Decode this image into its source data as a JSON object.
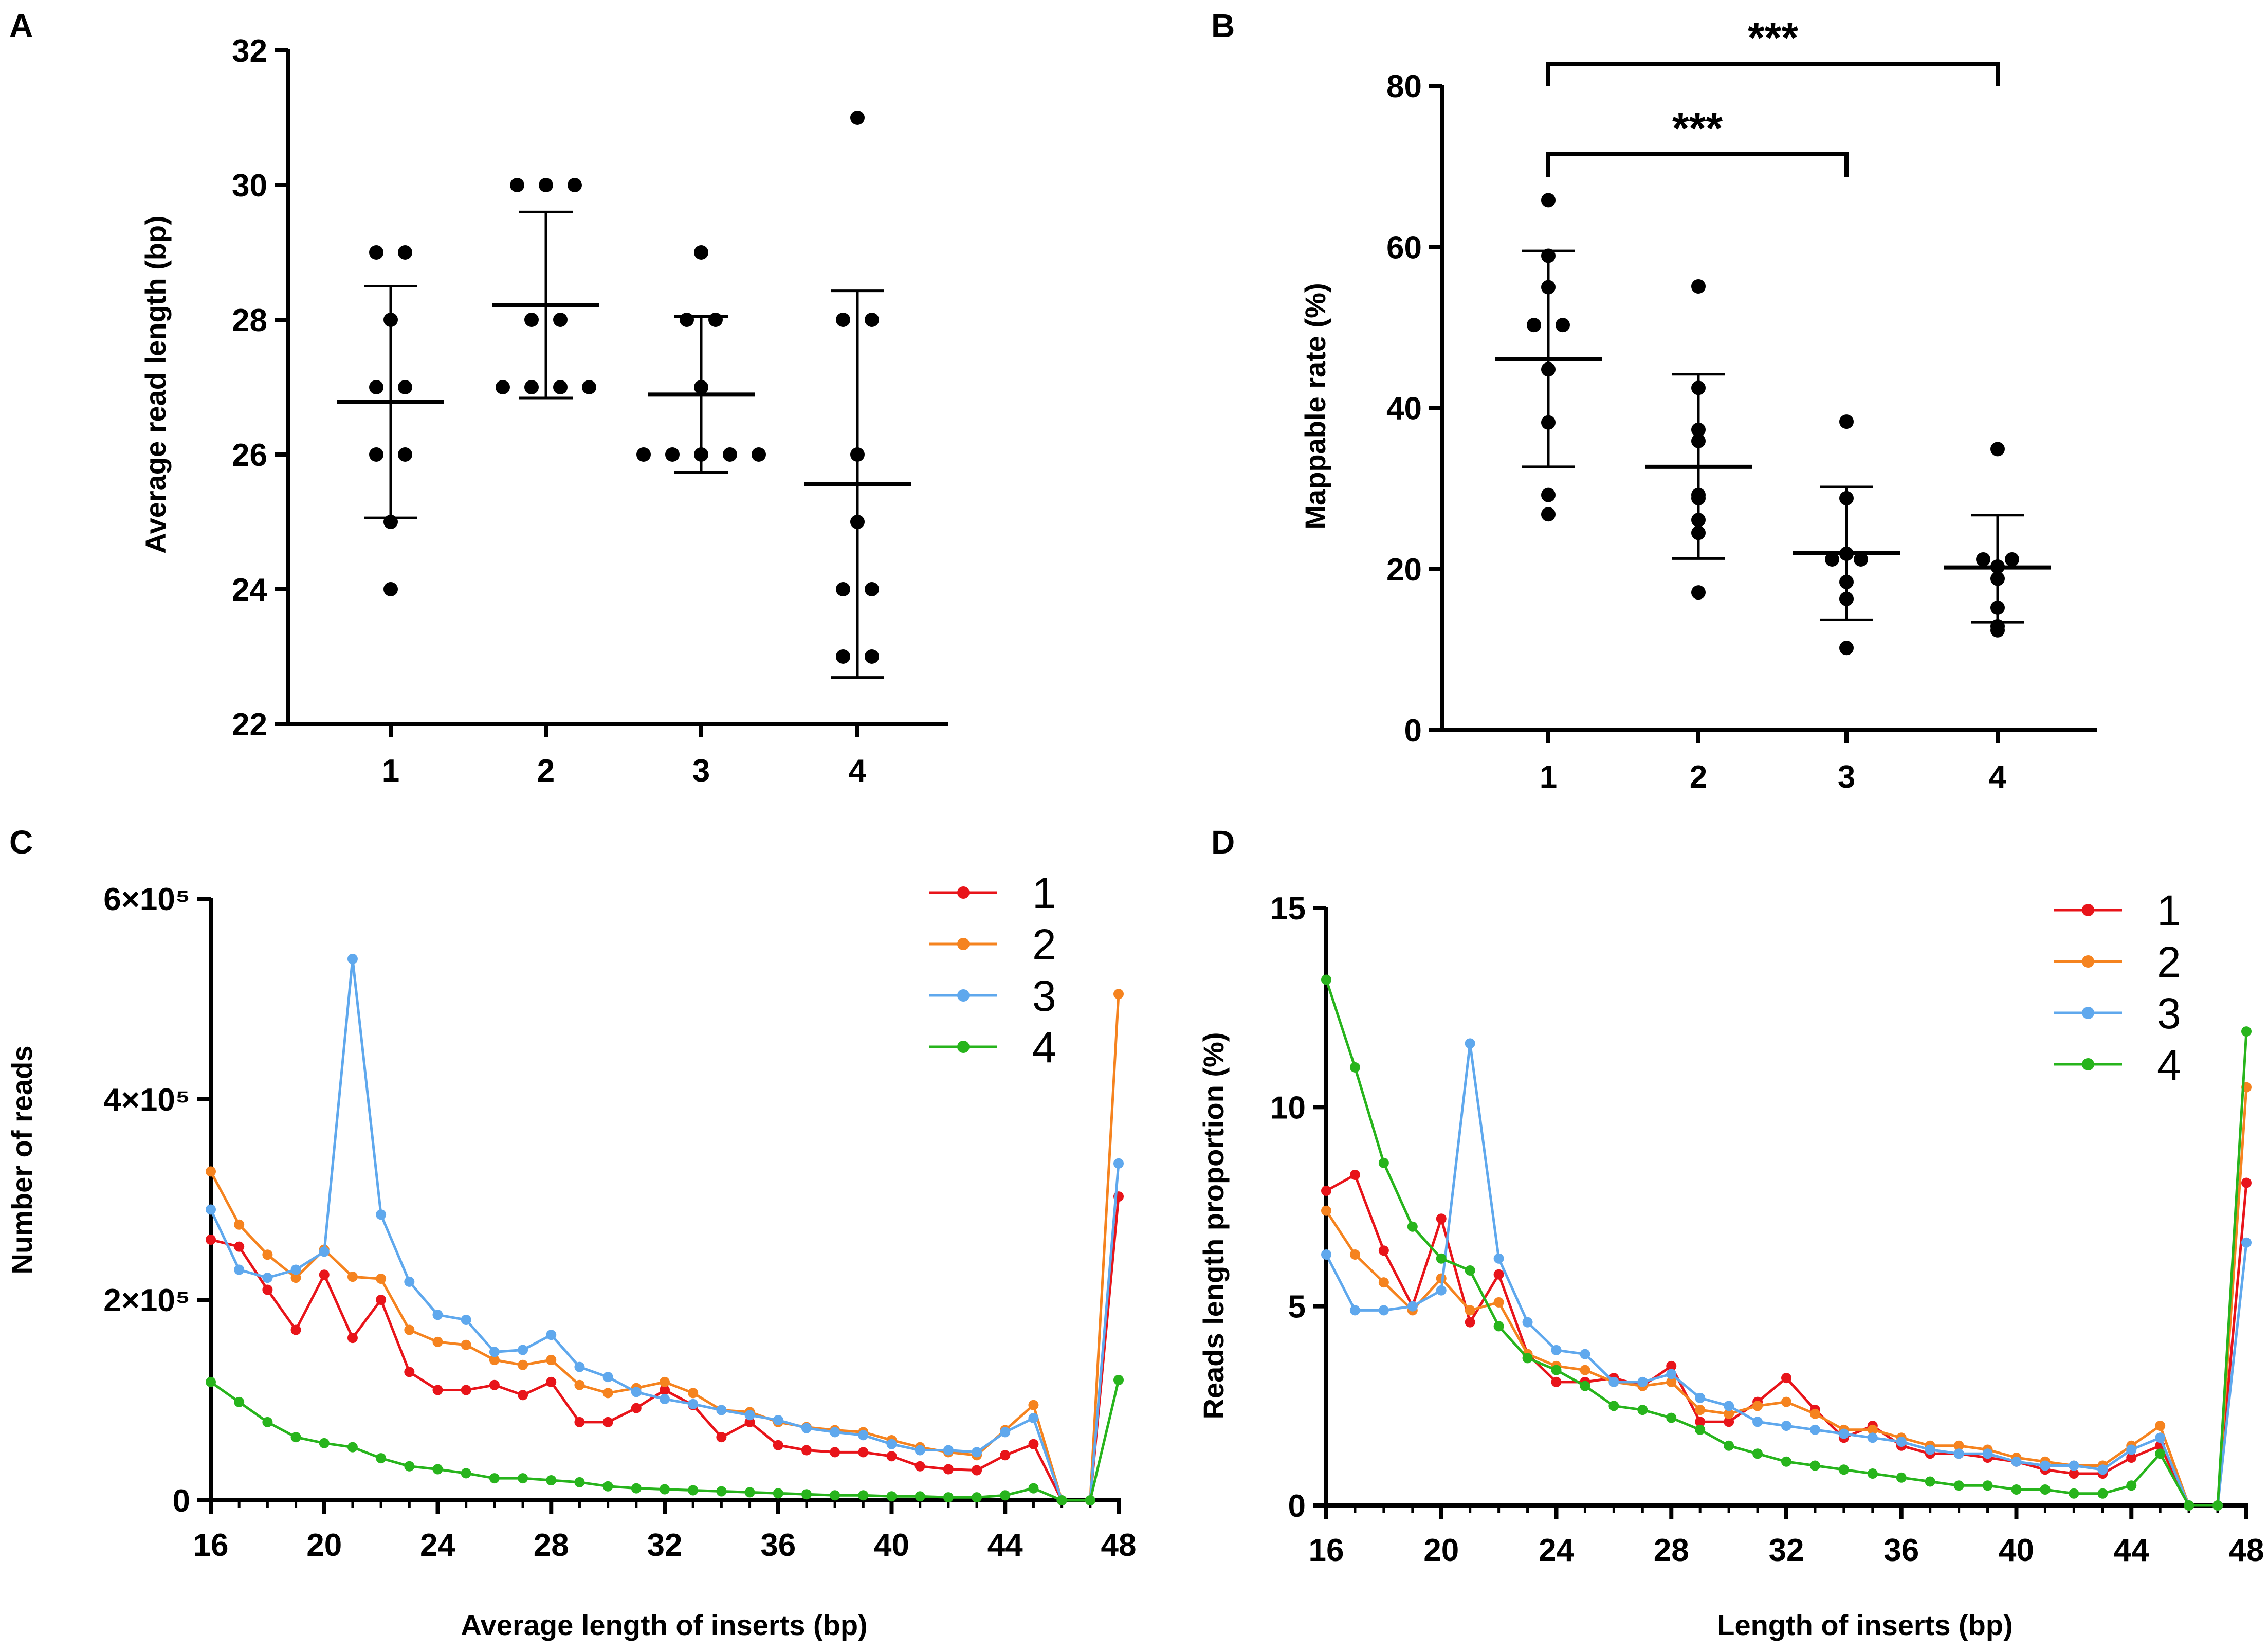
{
  "colors": {
    "s1": "#e8141a",
    "s2": "#f5831f",
    "s3": "#5fa8ed",
    "s4": "#27b41c",
    "axis": "#000000"
  },
  "chart_data": [
    {
      "panel": "A",
      "type": "scatter",
      "ylabel": "Average read length (bp)",
      "ylim": [
        22,
        32
      ],
      "yticks": [
        22,
        24,
        26,
        28,
        30,
        32
      ],
      "categories": [
        "1",
        "2",
        "3",
        "4"
      ],
      "groups": [
        {
          "name": "1",
          "points": [
            29,
            29,
            28,
            27,
            27,
            26,
            26,
            25,
            24
          ],
          "mean": 26.78,
          "sd_low": 25.06,
          "sd_high": 28.5
        },
        {
          "name": "2",
          "points": [
            30,
            30,
            30,
            28,
            28,
            27,
            27,
            27,
            27
          ],
          "mean": 28.22,
          "sd_low": 26.84,
          "sd_high": 29.6
        },
        {
          "name": "3",
          "points": [
            29,
            28,
            28,
            27,
            26,
            26,
            26,
            26,
            26
          ],
          "mean": 26.89,
          "sd_low": 25.73,
          "sd_high": 28.05
        },
        {
          "name": "4",
          "points": [
            31,
            28,
            28,
            26,
            25,
            24,
            24,
            23,
            23
          ],
          "mean": 25.56,
          "sd_low": 22.69,
          "sd_high": 28.43
        }
      ]
    },
    {
      "panel": "B",
      "type": "scatter",
      "ylabel": "Mappable rate (%)",
      "ylim": [
        0,
        80
      ],
      "yticks": [
        0,
        20,
        40,
        60,
        80
      ],
      "categories": [
        "1",
        "2",
        "3",
        "4"
      ],
      "groups": [
        {
          "name": "1",
          "points": [
            65.8,
            58.9,
            55,
            50.3,
            50.3,
            44.8,
            38.2,
            29.2,
            26.8
          ],
          "mean": 46.1,
          "sd_low": 32.7,
          "sd_high": 59.5
        },
        {
          "name": "2",
          "points": [
            55.1,
            42.5,
            37.3,
            35.9,
            29.2,
            28.8,
            26.1,
            24.5,
            17.1
          ],
          "mean": 32.7,
          "sd_low": 21.3,
          "sd_high": 44.2
        },
        {
          "name": "3",
          "points": [
            38.3,
            28.8,
            21.9,
            21.2,
            21.2,
            18.4,
            16.3,
            10.2
          ],
          "mean": 22.0,
          "sd_low": 13.7,
          "sd_high": 30.2
        },
        {
          "name": "4",
          "points": [
            34.9,
            21.2,
            21.2,
            20.3,
            18.8,
            15.2,
            12.9,
            12.4
          ],
          "mean": 20.2,
          "sd_low": 13.4,
          "sd_high": 26.7
        }
      ],
      "significance": [
        {
          "from": "1",
          "to": "3",
          "label": "***"
        },
        {
          "from": "1",
          "to": "4",
          "label": "***"
        }
      ]
    },
    {
      "panel": "C",
      "type": "line",
      "xlabel": "Average length of inserts (bp)",
      "ylabel": "Number of reads",
      "xlim": [
        16,
        48
      ],
      "ylim": [
        0,
        600000
      ],
      "xticks": [
        16,
        20,
        24,
        28,
        32,
        36,
        40,
        44,
        48
      ],
      "ytick_values": [
        0,
        200000,
        400000,
        600000
      ],
      "ytick_labels": [
        "0",
        "2×10⁵",
        "4×10⁵",
        "6×10⁵"
      ],
      "x": [
        16,
        17,
        18,
        19,
        20,
        21,
        22,
        23,
        24,
        25,
        26,
        27,
        28,
        29,
        30,
        31,
        32,
        33,
        34,
        35,
        36,
        37,
        38,
        39,
        40,
        41,
        42,
        43,
        44,
        45,
        46,
        47,
        48
      ],
      "series": [
        {
          "name": "1",
          "values": [
            260000,
            253000,
            210000,
            170000,
            225000,
            162000,
            200000,
            128000,
            110000,
            110000,
            115000,
            105000,
            118000,
            78000,
            78000,
            92000,
            110000,
            95000,
            63000,
            78000,
            55000,
            50000,
            48000,
            48000,
            44000,
            34000,
            31000,
            30000,
            45000,
            56000,
            0,
            0,
            303000
          ]
        },
        {
          "name": "2",
          "values": [
            328000,
            275000,
            245000,
            222000,
            250000,
            223000,
            221000,
            170000,
            158000,
            155000,
            140000,
            135000,
            140000,
            115000,
            107000,
            112000,
            118000,
            107000,
            90000,
            88000,
            78000,
            73000,
            70000,
            68000,
            60000,
            53000,
            48000,
            45000,
            70000,
            95000,
            0,
            0,
            505000
          ]
        },
        {
          "name": "3",
          "values": [
            290000,
            230000,
            222000,
            230000,
            248000,
            540000,
            285000,
            218000,
            185000,
            180000,
            148000,
            150000,
            165000,
            133000,
            123000,
            108000,
            101000,
            96000,
            90000,
            85000,
            80000,
            72000,
            68000,
            65000,
            56000,
            50000,
            50000,
            48000,
            68000,
            82000,
            0,
            0,
            336000
          ]
        },
        {
          "name": "4",
          "values": [
            118000,
            98000,
            78000,
            63000,
            57000,
            53000,
            42000,
            34000,
            31000,
            27000,
            22000,
            22000,
            20000,
            18000,
            14000,
            12000,
            11000,
            10000,
            9000,
            8000,
            7000,
            6000,
            5000,
            5000,
            4000,
            4000,
            3000,
            3000,
            5000,
            12000,
            0,
            0,
            120000
          ]
        }
      ]
    },
    {
      "panel": "D",
      "type": "line",
      "xlabel": "Length of inserts (bp)",
      "ylabel": "Reads length proportion (%)",
      "xlim": [
        16,
        48
      ],
      "ylim": [
        0,
        15
      ],
      "xticks": [
        16,
        20,
        24,
        28,
        32,
        36,
        40,
        44,
        48
      ],
      "ytick_values": [
        0,
        5,
        10,
        15
      ],
      "ytick_labels": [
        "0",
        "5",
        "10",
        "15"
      ],
      "x": [
        16,
        17,
        18,
        19,
        20,
        21,
        22,
        23,
        24,
        25,
        26,
        27,
        28,
        29,
        30,
        31,
        32,
        33,
        34,
        35,
        36,
        37,
        38,
        39,
        40,
        41,
        42,
        43,
        44,
        45,
        46,
        47,
        48
      ],
      "series": [
        {
          "name": "1",
          "values": [
            7.9,
            8.3,
            6.4,
            5.0,
            7.2,
            4.6,
            5.8,
            3.8,
            3.1,
            3.1,
            3.2,
            3.0,
            3.5,
            2.1,
            2.1,
            2.6,
            3.2,
            2.4,
            1.7,
            2.0,
            1.5,
            1.3,
            1.3,
            1.2,
            1.1,
            0.9,
            0.8,
            0.8,
            1.2,
            1.5,
            0,
            0,
            8.1
          ]
        },
        {
          "name": "2",
          "values": [
            7.4,
            6.3,
            5.6,
            4.9,
            5.7,
            4.9,
            5.1,
            3.8,
            3.5,
            3.4,
            3.1,
            3.0,
            3.1,
            2.4,
            2.3,
            2.5,
            2.6,
            2.3,
            1.9,
            1.9,
            1.7,
            1.5,
            1.5,
            1.4,
            1.2,
            1.1,
            1.0,
            1.0,
            1.5,
            2.0,
            0,
            0,
            10.5
          ]
        },
        {
          "name": "3",
          "values": [
            6.3,
            4.9,
            4.9,
            5.0,
            5.4,
            11.6,
            6.2,
            4.6,
            3.9,
            3.8,
            3.1,
            3.1,
            3.3,
            2.7,
            2.5,
            2.1,
            2.0,
            1.9,
            1.8,
            1.7,
            1.6,
            1.4,
            1.3,
            1.3,
            1.1,
            1.0,
            1.0,
            0.9,
            1.4,
            1.7,
            0,
            0,
            6.6
          ]
        },
        {
          "name": "4",
          "values": [
            13.2,
            11.0,
            8.6,
            7.0,
            6.2,
            5.9,
            4.5,
            3.7,
            3.4,
            3.0,
            2.5,
            2.4,
            2.2,
            1.9,
            1.5,
            1.3,
            1.1,
            1.0,
            0.9,
            0.8,
            0.7,
            0.6,
            0.5,
            0.5,
            0.4,
            0.4,
            0.3,
            0.3,
            0.5,
            1.3,
            0,
            0,
            11.9
          ]
        }
      ]
    }
  ]
}
